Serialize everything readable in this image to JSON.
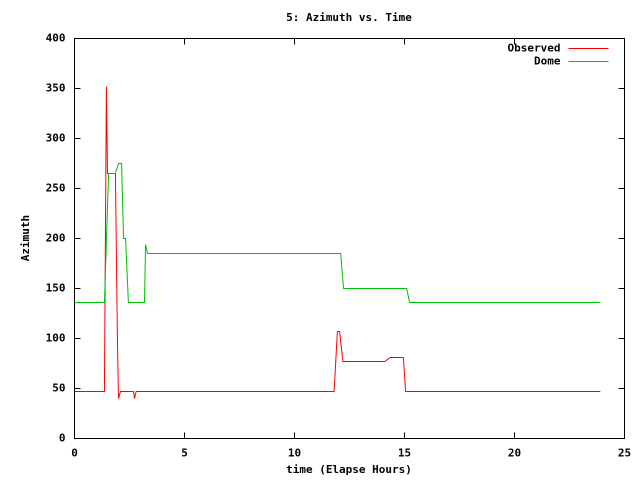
{
  "chart_data": {
    "type": "line",
    "title": "5: Azimuth vs. Time",
    "x_label": "time (Elapse Hours)",
    "y_label": "Azimuth",
    "xlim": [
      0,
      25
    ],
    "xticks": [
      0,
      5,
      10,
      15,
      20,
      25
    ],
    "ylim": [
      0,
      400
    ],
    "yticks": [
      0,
      50,
      100,
      150,
      200,
      250,
      300,
      350,
      400
    ],
    "grid": false,
    "legend": "top-right",
    "series": [
      {
        "name": "Observed",
        "color": "#ff0000",
        "x": [
          0,
          1.36,
          1.45,
          1.5,
          1.55,
          1.86,
          1.95,
          2.0,
          2.09,
          2.68,
          2.73,
          2.8,
          11.8,
          11.95,
          12.05,
          12.2,
          14.1,
          14.35,
          14.95,
          15.05,
          23.9
        ],
        "values": [
          47,
          47,
          352,
          265,
          265,
          265,
          100,
          40,
          47,
          47,
          40,
          47,
          47,
          107,
          107,
          77,
          77,
          81,
          81,
          47,
          47
        ]
      },
      {
        "name": "Dome",
        "color": "#00c000",
        "x": [
          0,
          1.36,
          1.55,
          1.86,
          2.0,
          2.14,
          2.23,
          2.32,
          2.45,
          3.18,
          3.23,
          3.32,
          12.1,
          12.23,
          15.1,
          15.23,
          23.9
        ],
        "values": [
          136,
          136,
          265,
          265,
          275,
          275,
          200,
          200,
          136,
          136,
          194,
          185,
          185,
          150,
          150,
          136,
          136
        ]
      }
    ]
  }
}
